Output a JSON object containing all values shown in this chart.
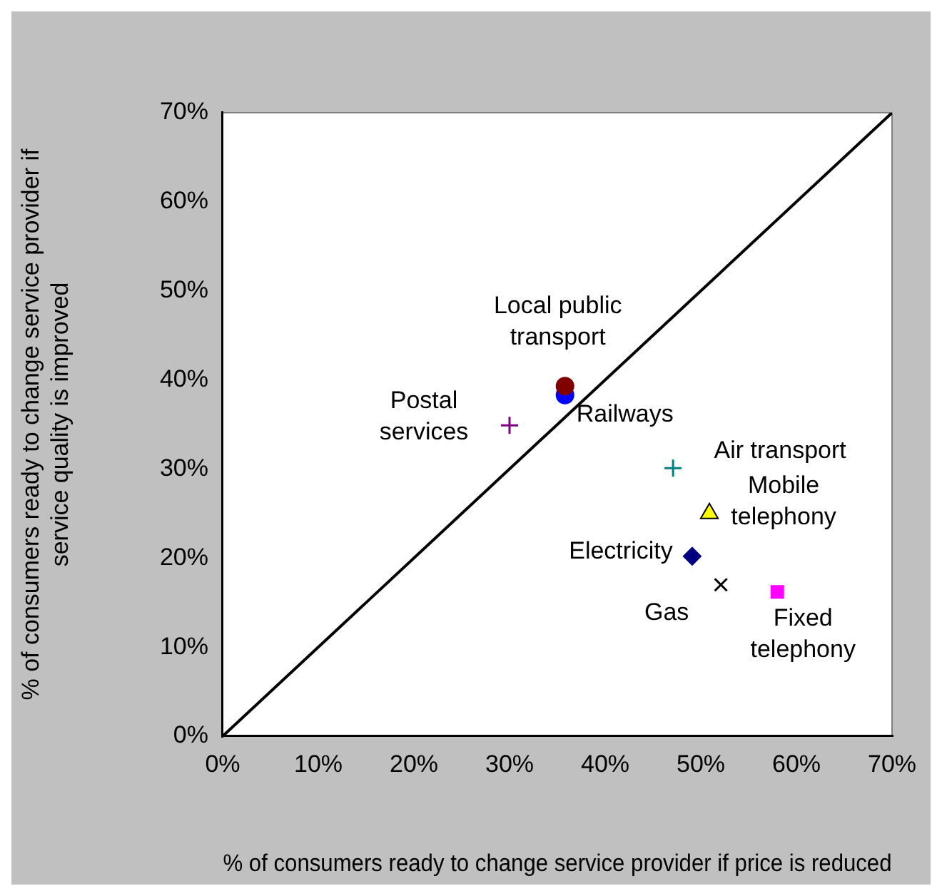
{
  "chart_data": {
    "type": "scatter",
    "xlabel": "% of consumers ready to change service provider if price is reduced",
    "ylabel": "% of consumers ready to change service provider if service quality is improved",
    "xlim": [
      0,
      70
    ],
    "ylim": [
      0,
      70
    ],
    "xticks": [
      {
        "value": 0,
        "label": "0%"
      },
      {
        "value": 10,
        "label": "10%"
      },
      {
        "value": 20,
        "label": "20%"
      },
      {
        "value": 30,
        "label": "30%"
      },
      {
        "value": 40,
        "label": "40%"
      },
      {
        "value": 50,
        "label": "50%"
      },
      {
        "value": 60,
        "label": "60%"
      },
      {
        "value": 70,
        "label": "70%"
      }
    ],
    "yticks": [
      {
        "value": 0,
        "label": "0%"
      },
      {
        "value": 10,
        "label": "10%"
      },
      {
        "value": 20,
        "label": "20%"
      },
      {
        "value": 30,
        "label": "30%"
      },
      {
        "value": 40,
        "label": "40%"
      },
      {
        "value": 50,
        "label": "50%"
      },
      {
        "value": 60,
        "label": "60%"
      },
      {
        "value": 70,
        "label": "70%"
      }
    ],
    "grid": false,
    "legend": false,
    "series": [
      {
        "type": "line",
        "color": "#000000",
        "x": [
          0,
          70
        ],
        "values": [
          0,
          70
        ],
        "marker": "none",
        "line_style": "solid"
      },
      {
        "name": "Local public transport",
        "color": "#800000",
        "x": [
          35.8
        ],
        "values": [
          39.3
        ],
        "marker": "circle"
      },
      {
        "name": "Railways",
        "color": "#0000ff",
        "x": [
          35.8
        ],
        "values": [
          38.3
        ],
        "marker": "circle"
      },
      {
        "name": "Postal services",
        "color": "#800080",
        "x": [
          30.0
        ],
        "values": [
          34.9
        ],
        "marker": "cross"
      },
      {
        "name": "Air transport",
        "color": "#008080",
        "x": [
          47.1
        ],
        "values": [
          30.1
        ],
        "marker": "cross"
      },
      {
        "name": "Mobile telephony",
        "color": "#ffff00",
        "x": [
          50.9
        ],
        "values": [
          25.0
        ],
        "marker": "triangle"
      },
      {
        "name": "Electricity",
        "color": "#000080",
        "x": [
          49.1
        ],
        "values": [
          20.2
        ],
        "marker": "diamond"
      },
      {
        "name": "Gas",
        "color": "#000000",
        "x": [
          52.1
        ],
        "values": [
          17.0
        ],
        "marker": "x"
      },
      {
        "name": "Fixed telephony",
        "color": "#ff00ff",
        "x": [
          58.0
        ],
        "values": [
          16.2
        ],
        "marker": "square"
      }
    ]
  }
}
